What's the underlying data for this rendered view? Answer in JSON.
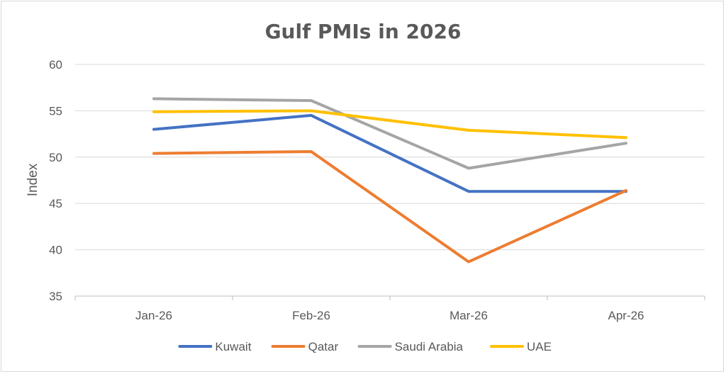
{
  "chart_data": {
    "type": "line",
    "title": "Gulf PMIs in 2026",
    "xlabel": "",
    "ylabel": "Index",
    "categories": [
      "Jan-26",
      "Feb-26",
      "Mar-26",
      "Apr-26"
    ],
    "ylim": [
      35,
      60
    ],
    "yticks": [
      "35",
      "40",
      "45",
      "50",
      "55",
      "60"
    ],
    "grid": true,
    "legend_position": "bottom",
    "series": [
      {
        "name": "Kuwait",
        "color": "#4472C4",
        "values": [
          53.0,
          54.5,
          46.3,
          46.3
        ]
      },
      {
        "name": "Qatar",
        "color": "#ED7D31",
        "values": [
          50.4,
          50.6,
          38.7,
          46.4
        ]
      },
      {
        "name": "Saudi Arabia",
        "color": "#A5A5A5",
        "values": [
          56.3,
          56.1,
          48.8,
          51.5
        ]
      },
      {
        "name": "UAE",
        "color": "#FFC000",
        "values": [
          54.9,
          55.0,
          52.9,
          52.1
        ]
      }
    ]
  }
}
